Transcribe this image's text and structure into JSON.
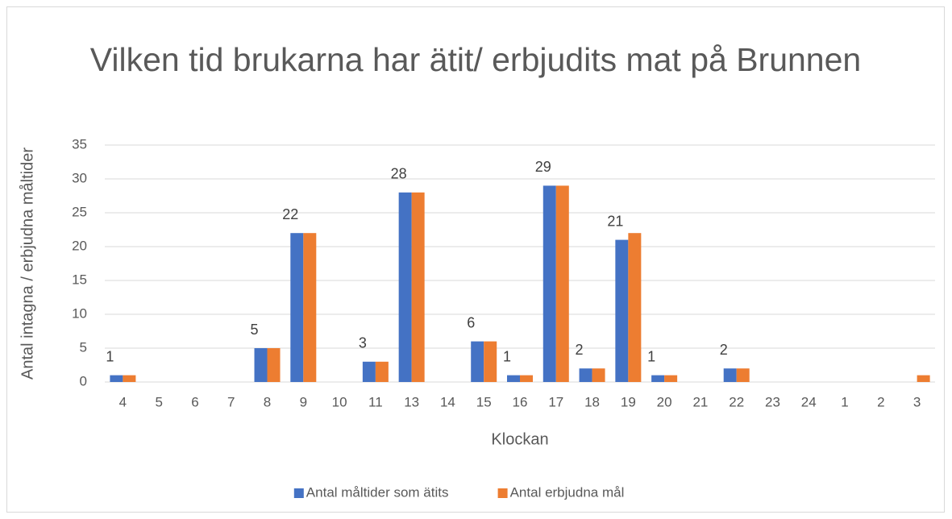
{
  "chart_data": {
    "type": "bar",
    "title": "Vilken tid brukarna har ätit/ erbjudits mat på Brunnen",
    "x_label": "Klockan",
    "y_label": "Antal intagna / erbjudna måltider",
    "categories": [
      "4",
      "5",
      "6",
      "7",
      "8",
      "9",
      "10",
      "11",
      "13",
      "14",
      "15",
      "16",
      "17",
      "18",
      "19",
      "20",
      "21",
      "22",
      "23",
      "24",
      "1",
      "2",
      "3"
    ],
    "series": [
      {
        "name": "Antal måltider som ätits",
        "color": "#4472c4",
        "data_labels": true,
        "values": [
          1,
          0,
          0,
          0,
          5,
          22,
          0,
          3,
          28,
          0,
          6,
          1,
          29,
          2,
          21,
          1,
          0,
          2,
          0,
          0,
          0,
          0,
          0
        ]
      },
      {
        "name": "Antal erbjudna mål",
        "color": "#ed7d31",
        "data_labels": false,
        "values": [
          1,
          0,
          0,
          0,
          5,
          22,
          0,
          3,
          28,
          0,
          6,
          1,
          29,
          2,
          22,
          1,
          0,
          2,
          0,
          0,
          0,
          0,
          1
        ]
      }
    ],
    "ylim": [
      0,
      35
    ],
    "yticks": [
      0,
      5,
      10,
      15,
      20,
      25,
      30,
      35
    ],
    "grid": true,
    "legend": "bottom"
  }
}
